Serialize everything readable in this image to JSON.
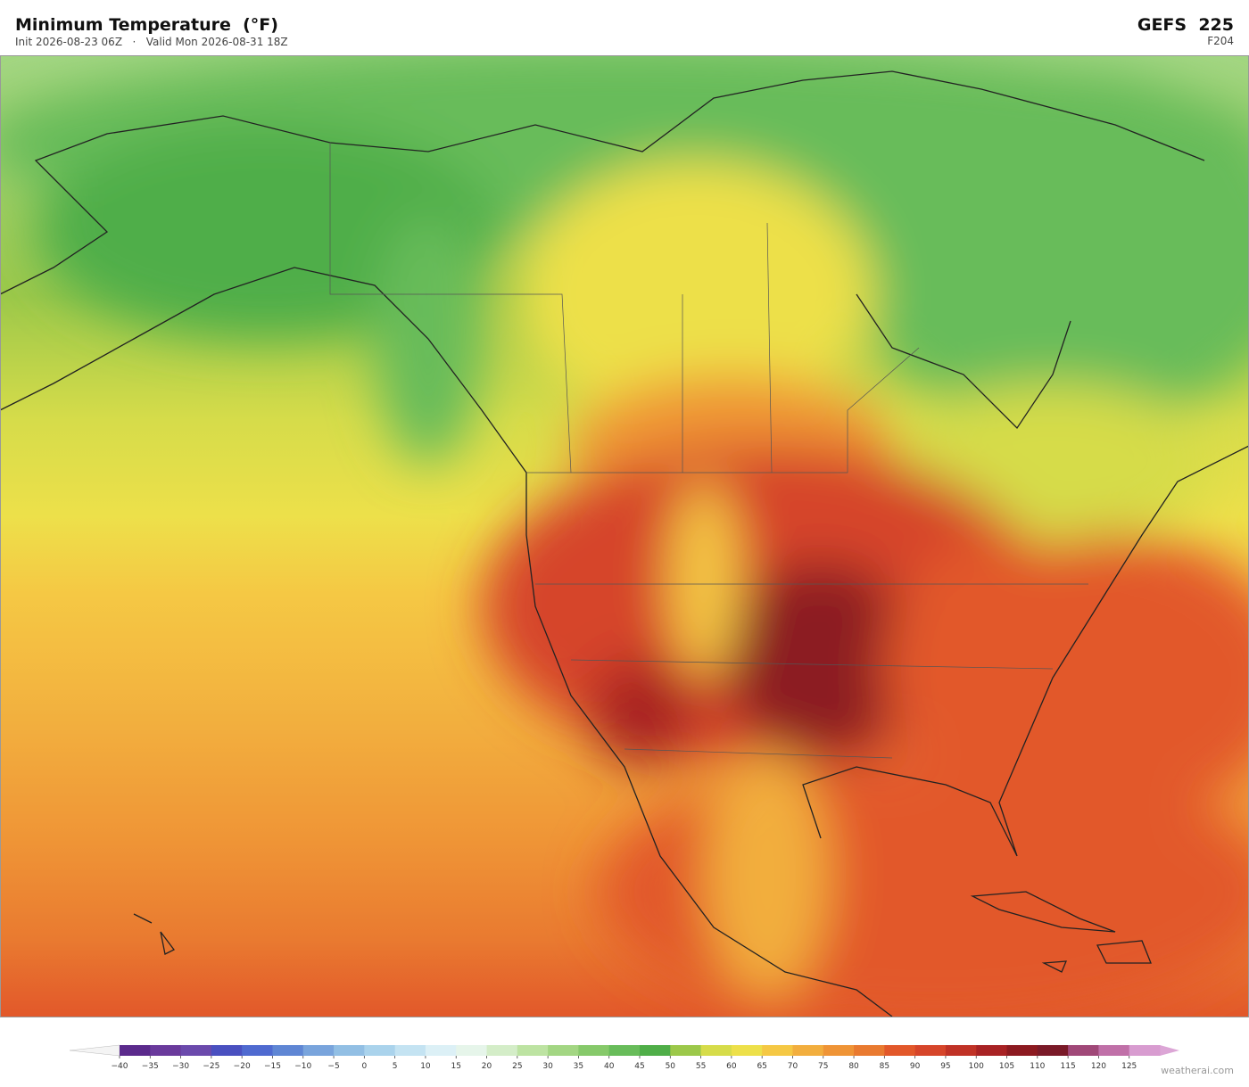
{
  "header": {
    "title": "Minimum Temperature  (°F)",
    "subtitle": "Init 2026-08-23 06Z   ·   Valid Mon 2026-08-31 18Z",
    "model": "GEFS  225",
    "forecast_hour": "F204"
  },
  "colorbar": {
    "lim": [
      -40,
      130
    ],
    "under_color": "#f4f4f4",
    "over_color": "#dca6d6",
    "colors": [
      "#5b2a8c",
      "#6a3a9c",
      "#6b4aac",
      "#4a50c0",
      "#4f6ad0",
      "#5f86d4",
      "#79a4dc",
      "#92bfe4",
      "#aad3ec",
      "#c4e3f2",
      "#dcf0f6",
      "#e6f5ea",
      "#d4edc8",
      "#bde3a2",
      "#a3d683",
      "#86c96a",
      "#68bc5a",
      "#4fae48",
      "#9cc84a",
      "#d6dc4a",
      "#ede04a",
      "#f5c844",
      "#f2ae3e",
      "#ef9436",
      "#e97a30",
      "#e2582a",
      "#d6452a",
      "#c03226",
      "#a82224",
      "#8c1a20",
      "#7a1a28",
      "#a04878",
      "#c070a8",
      "#d89cd0"
    ],
    "ticks": [
      {
        "value": -40,
        "label": "−40"
      },
      {
        "value": -35,
        "label": "−35"
      },
      {
        "value": -30,
        "label": "−30"
      },
      {
        "value": -25,
        "label": "−25"
      },
      {
        "value": -20,
        "label": "−20"
      },
      {
        "value": -15,
        "label": "−15"
      },
      {
        "value": -10,
        "label": "−10"
      },
      {
        "value": -5,
        "label": "−5"
      },
      0,
      5,
      10,
      15,
      20,
      25,
      30,
      35,
      40,
      45,
      50,
      55,
      60,
      65,
      70,
      75,
      80,
      85,
      90,
      95,
      100,
      105,
      110,
      115,
      120,
      125
    ]
  },
  "footer": {
    "credit": "weatherai.com"
  }
}
